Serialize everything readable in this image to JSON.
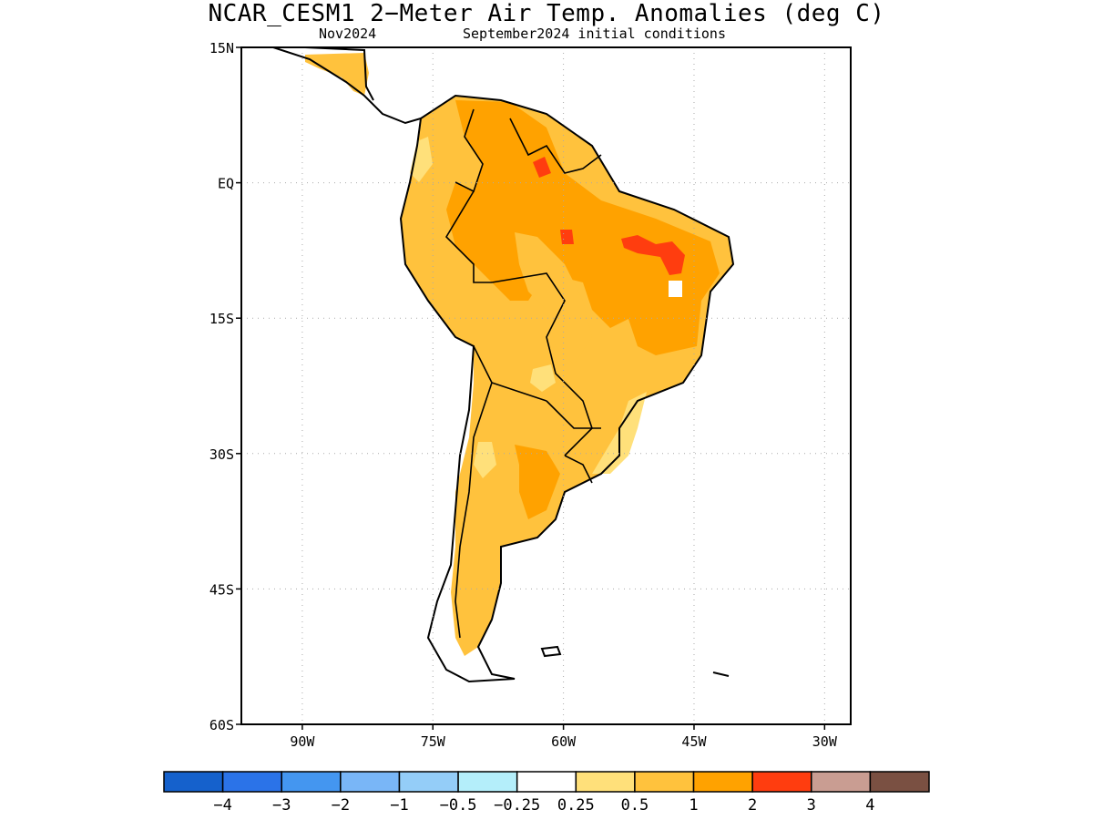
{
  "title": "NCAR_CESM1 2−Meter Air Temp. Anomalies (deg C)",
  "subtitle_month": "Nov2024",
  "subtitle_ic": "September2024 initial conditions",
  "map": {
    "lon_range": [
      -97,
      -27
    ],
    "lat_range": [
      -60,
      15
    ],
    "lat_ticks": [
      {
        "value": 15,
        "label": "15N"
      },
      {
        "value": 0,
        "label": "EQ"
      },
      {
        "value": -15,
        "label": "15S"
      },
      {
        "value": -30,
        "label": "30S"
      },
      {
        "value": -45,
        "label": "45S"
      },
      {
        "value": -60,
        "label": "60S"
      }
    ],
    "lon_ticks": [
      {
        "value": -90,
        "label": "90W"
      },
      {
        "value": -75,
        "label": "75W"
      },
      {
        "value": -60,
        "label": "60W"
      },
      {
        "value": -45,
        "label": "45W"
      },
      {
        "value": -30,
        "label": "30W"
      }
    ],
    "grid": "dotted"
  },
  "colorbar": {
    "colors": [
      "#1561cc",
      "#2b73e8",
      "#4496f0",
      "#79b6f7",
      "#94cdf8",
      "#b4eefa",
      "#ffffff",
      "#ffe07a",
      "#ffc23d",
      "#ffa200",
      "#ff3d0f",
      "#c99d92",
      "#7a5042"
    ],
    "labels": [
      "−4",
      "−3",
      "−2",
      "−1",
      "−0.5",
      "−0.25",
      "0.25",
      "0.5",
      "1",
      "2",
      "3",
      "4"
    ]
  },
  "anomaly_colors": {
    "weak": "#ffe07a",
    "moderate": "#ffc23d",
    "strong": "#ffa200",
    "extreme": "#ff3d0f"
  }
}
